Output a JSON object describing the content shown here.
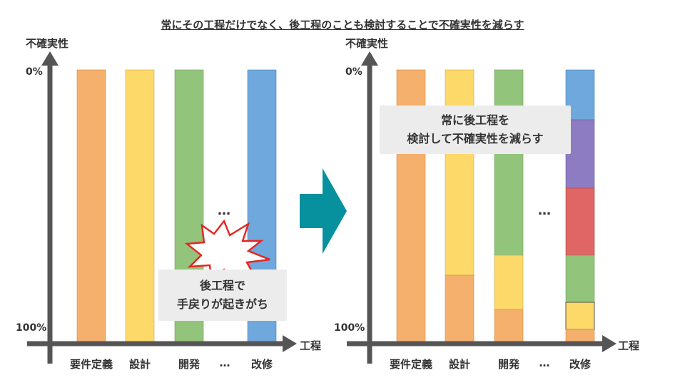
{
  "title": "常にその工程だけでなく、後工程のことも検討することで不確実性を減らす",
  "left": {
    "y_axis_label": "不確実性",
    "x_axis_label": "工程",
    "y_top_tick": "0%",
    "y_bottom_tick": "100%",
    "categories": [
      "要件定義",
      "設計",
      "開発",
      "…",
      "改修"
    ],
    "ellipsis_between_bars": "…",
    "callout": [
      "後工程で",
      "手戻りが起きがち"
    ]
  },
  "right": {
    "y_axis_label": "不確実性",
    "x_axis_label": "工程",
    "y_top_tick": "0%",
    "y_bottom_tick": "100%",
    "categories": [
      "要件定義",
      "設計",
      "開発",
      "…",
      "改修"
    ],
    "ellipsis_between_bars": "…",
    "callout": [
      "常に後工程を",
      "検討して不確実性を減らす"
    ]
  },
  "colors": {
    "orange": "#f6b06d",
    "yellow": "#fdd96a",
    "green": "#92c47c",
    "blue": "#6fa8dc",
    "purple": "#8e7cc3",
    "red": "#e06666",
    "axis": "#555555",
    "arrow": "#07909e",
    "burst_stroke": "#e8231f"
  },
  "arrow_icon": "big-right-arrow-icon",
  "burst_icon": "explosion-burst-icon"
}
